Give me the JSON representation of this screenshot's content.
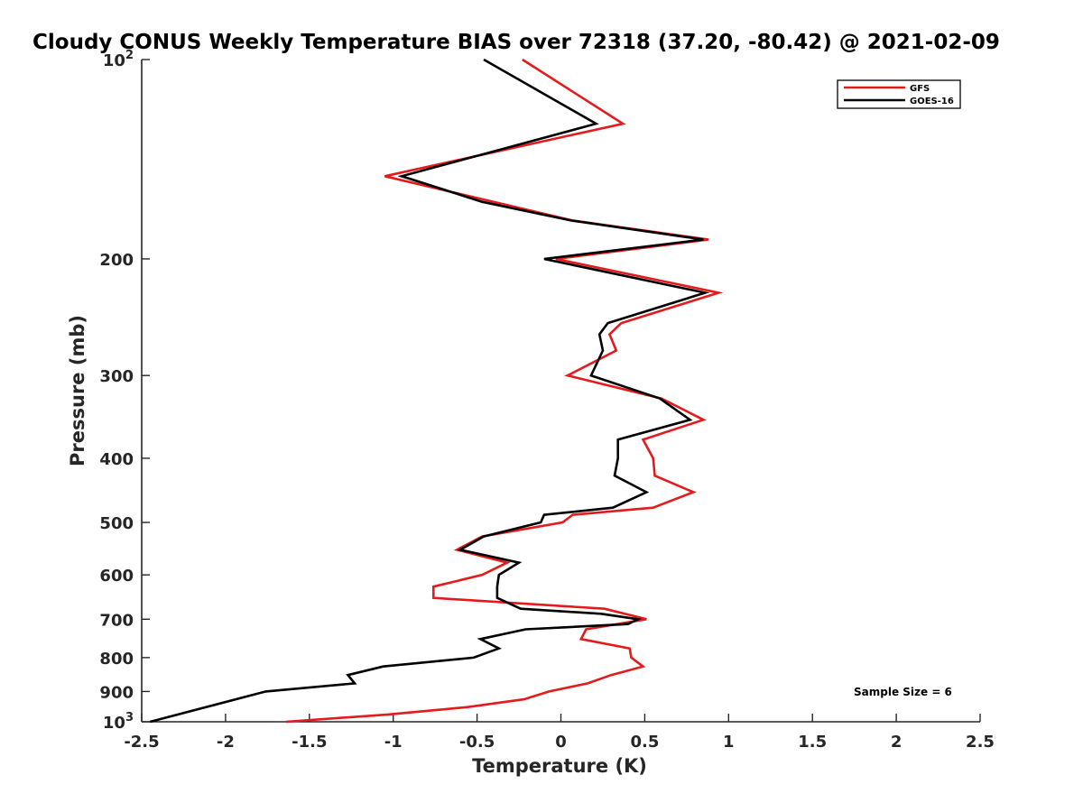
{
  "chart_data": {
    "type": "line",
    "title": "Cloudy CONUS Weekly Temperature BIAS over 72318 (37.20, -80.42) @ 2021-02-09",
    "xlabel": "Temperature (K)",
    "ylabel": "Pressure (mb)",
    "xlim": [
      -2.5,
      2.5
    ],
    "ylim": [
      1000,
      100
    ],
    "y_scale": "log",
    "y_reversed": true,
    "grid": false,
    "legend_position": "top-right",
    "x_ticks": [
      "-2.5",
      "-2",
      "-1.5",
      "-1",
      "-0.5",
      "0",
      "0.5",
      "1",
      "1.5",
      "2",
      "2.5"
    ],
    "x_tick_values": [
      -2.5,
      -2,
      -1.5,
      -1,
      -0.5,
      0,
      0.5,
      1,
      1.5,
      2,
      2.5
    ],
    "y_ticks": [
      {
        "value": 100,
        "base": "10",
        "exp": "2"
      },
      {
        "value": 200,
        "label": "200"
      },
      {
        "value": 300,
        "label": "300"
      },
      {
        "value": 400,
        "label": "400"
      },
      {
        "value": 500,
        "label": "500"
      },
      {
        "value": 600,
        "label": "600"
      },
      {
        "value": 700,
        "label": "700"
      },
      {
        "value": 800,
        "label": "800"
      },
      {
        "value": 900,
        "label": "900"
      },
      {
        "value": 1000,
        "base": "10",
        "exp": "3"
      }
    ],
    "series": [
      {
        "name": "GFS",
        "color": "#e41a1c",
        "points": [
          [
            -0.23,
            100
          ],
          [
            0.37,
            125
          ],
          [
            -1.05,
            150
          ],
          [
            0.07,
            175
          ],
          [
            0.88,
            187
          ],
          [
            -0.03,
            200
          ],
          [
            0.94,
            225
          ],
          [
            0.36,
            250
          ],
          [
            0.29,
            260
          ],
          [
            0.33,
            275
          ],
          [
            0.04,
            300
          ],
          [
            0.6,
            325
          ],
          [
            0.85,
            350
          ],
          [
            0.49,
            375
          ],
          [
            0.55,
            400
          ],
          [
            0.56,
            425
          ],
          [
            0.79,
            450
          ],
          [
            0.55,
            475
          ],
          [
            0.07,
            487
          ],
          [
            0.01,
            500
          ],
          [
            -0.47,
            525
          ],
          [
            -0.62,
            550
          ],
          [
            -0.32,
            575
          ],
          [
            -0.47,
            600
          ],
          [
            -0.76,
            625
          ],
          [
            -0.76,
            650
          ],
          [
            0.26,
            675
          ],
          [
            0.51,
            700
          ],
          [
            0.15,
            725
          ],
          [
            0.12,
            750
          ],
          [
            0.41,
            775
          ],
          [
            0.42,
            800
          ],
          [
            0.49,
            825
          ],
          [
            0.3,
            850
          ],
          [
            0.16,
            875
          ],
          [
            -0.07,
            900
          ],
          [
            -0.22,
            925
          ],
          [
            -0.55,
            950
          ],
          [
            -1.03,
            975
          ],
          [
            -1.64,
            1000
          ]
        ]
      },
      {
        "name": "GOES-16",
        "color": "#000000",
        "points": [
          [
            -0.46,
            100
          ],
          [
            0.21,
            125
          ],
          [
            -0.95,
            150
          ],
          [
            -0.47,
            164
          ],
          [
            0.06,
            175
          ],
          [
            0.85,
            187
          ],
          [
            -0.1,
            200
          ],
          [
            0.86,
            225
          ],
          [
            0.28,
            250
          ],
          [
            0.23,
            260
          ],
          [
            0.25,
            275
          ],
          [
            0.18,
            300
          ],
          [
            0.59,
            325
          ],
          [
            0.77,
            350
          ],
          [
            0.34,
            375
          ],
          [
            0.34,
            400
          ],
          [
            0.32,
            425
          ],
          [
            0.51,
            450
          ],
          [
            0.31,
            475
          ],
          [
            -0.1,
            487
          ],
          [
            -0.12,
            500
          ],
          [
            -0.46,
            525
          ],
          [
            -0.6,
            550
          ],
          [
            -0.25,
            575
          ],
          [
            -0.37,
            600
          ],
          [
            -0.38,
            625
          ],
          [
            -0.38,
            650
          ],
          [
            -0.24,
            675
          ],
          [
            0.24,
            687
          ],
          [
            0.46,
            700
          ],
          [
            0.4,
            712
          ],
          [
            -0.21,
            725
          ],
          [
            -0.48,
            750
          ],
          [
            -0.37,
            775
          ],
          [
            -0.52,
            800
          ],
          [
            -1.06,
            825
          ],
          [
            -1.27,
            850
          ],
          [
            -1.23,
            875
          ],
          [
            -1.76,
            900
          ],
          [
            -2.45,
            1000
          ]
        ]
      }
    ],
    "legend": [
      {
        "name": "GFS",
        "color": "#e41a1c"
      },
      {
        "name": "GOES-16",
        "color": "#000000"
      }
    ],
    "annotation": "Sample Size = 6"
  }
}
